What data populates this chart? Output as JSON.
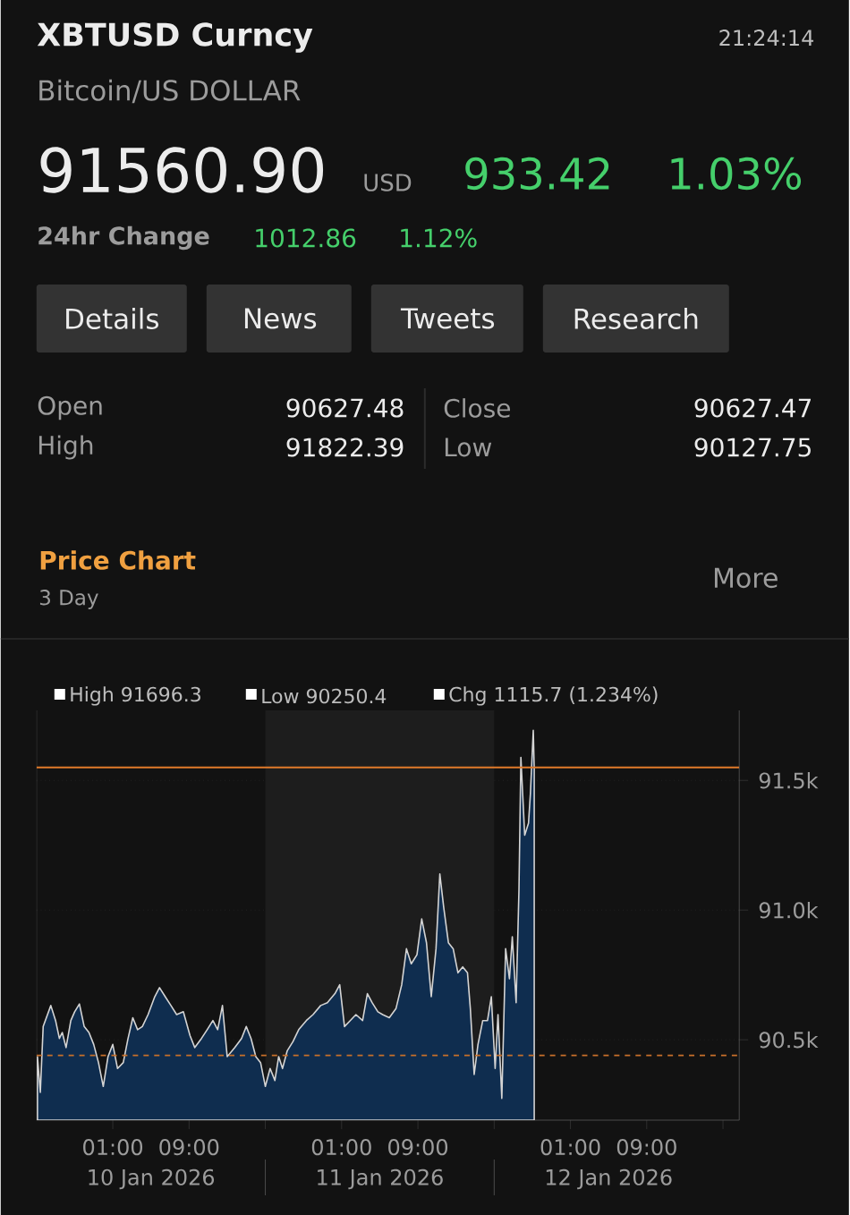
{
  "chart_data": {
    "type": "area",
    "title": "XBTUSD Curncy",
    "subtitle": "Bitcoin/US DOLLAR",
    "annotations": [
      "21:24:14",
      "91560.90",
      "USD",
      "933.42",
      "1.03%",
      "24hr Change",
      "1012.86",
      "1.12%",
      "Details",
      "News",
      "Tweets",
      "Research",
      "Open",
      "90627.48",
      "High",
      "91822.39",
      "Close",
      "90627.47",
      "Low",
      "90127.75",
      "Price Chart",
      "3 Day",
      "More",
      "High 91696.3",
      "Low 90250.4",
      "Chg 1115.7 (1.234%)",
      "10 Jan 2026",
      "11 Jan 2026",
      "12 Jan 2026"
    ],
    "x": [
      "2026-01-09T17:06",
      "2026-01-09T17:24",
      "2026-01-09T17:42",
      "2026-01-09T18:30",
      "2026-01-09T19:00",
      "2026-01-09T19:24",
      "2026-01-09T19:42",
      "2026-01-09T20:06",
      "2026-01-09T20:36",
      "2026-01-09T21:00",
      "2026-01-09T21:30",
      "2026-01-09T22:00",
      "2026-01-09T22:30",
      "2026-01-09T23:00",
      "2026-01-09T23:30",
      "2026-01-10T00:00",
      "2026-01-10T00:30",
      "2026-01-10T01:00",
      "2026-01-10T01:30",
      "2026-01-10T02:06",
      "2026-01-10T02:36",
      "2026-01-10T03:06",
      "2026-01-10T03:36",
      "2026-01-10T04:06",
      "2026-01-10T04:42",
      "2026-01-10T05:24",
      "2026-01-10T05:54",
      "2026-01-10T06:30",
      "2026-01-10T07:06",
      "2026-01-10T07:42",
      "2026-01-10T08:24",
      "2026-01-10T09:06",
      "2026-01-10T09:36",
      "2026-01-10T10:18",
      "2026-01-10T10:54",
      "2026-01-10T11:30",
      "2026-01-10T12:00",
      "2026-01-10T12:30",
      "2026-01-10T13:00",
      "2026-01-10T13:48",
      "2026-01-10T14:30",
      "2026-01-10T15:00",
      "2026-01-10T15:30",
      "2026-01-10T16:00",
      "2026-01-10T16:30",
      "2026-01-10T17:00",
      "2026-01-10T17:30",
      "2026-01-10T18:00",
      "2026-01-10T18:24",
      "2026-01-10T18:48",
      "2026-01-10T19:18",
      "2026-01-10T19:54",
      "2026-01-10T20:30",
      "2026-01-10T21:18",
      "2026-01-10T22:00",
      "2026-01-10T22:48",
      "2026-01-10T23:30",
      "2026-01-11T00:18",
      "2026-01-11T00:48",
      "2026-01-11T01:18",
      "2026-01-11T01:54",
      "2026-01-11T02:30",
      "2026-01-11T03:12",
      "2026-01-11T03:42",
      "2026-01-11T04:12",
      "2026-01-11T04:48",
      "2026-01-11T05:18",
      "2026-01-11T06:00",
      "2026-01-11T06:42",
      "2026-01-11T07:18",
      "2026-01-11T07:48",
      "2026-01-11T08:18",
      "2026-01-11T08:54",
      "2026-01-11T09:24",
      "2026-01-11T09:54",
      "2026-01-11T10:24",
      "2026-01-11T10:54",
      "2026-01-11T11:18",
      "2026-01-11T11:42",
      "2026-01-11T12:12",
      "2026-01-11T12:42",
      "2026-01-11T13:12",
      "2026-01-11T13:42",
      "2026-01-11T14:12",
      "2026-01-11T14:30",
      "2026-01-11T14:54",
      "2026-01-11T15:18",
      "2026-01-11T15:48",
      "2026-01-11T16:18",
      "2026-01-11T16:42",
      "2026-01-11T17:06",
      "2026-01-11T17:24",
      "2026-01-11T17:48",
      "2026-01-11T18:12",
      "2026-01-11T18:36",
      "2026-01-11T18:54",
      "2026-01-11T19:18",
      "2026-01-11T19:36",
      "2026-01-11T19:48",
      "2026-01-11T20:12",
      "2026-01-11T20:36",
      "2026-01-11T20:48",
      "2026-01-11T21:06",
      "2026-01-11T21:12"
    ],
    "series": [
      {
        "color": "#0f2d4f",
        "values": [
          90435,
          90297,
          90551,
          90632,
          90574,
          90505,
          90528,
          90470,
          90574,
          90608,
          90638,
          90551,
          90528,
          90482,
          90412,
          90320,
          90435,
          90482,
          90389,
          90412,
          90505,
          90585,
          90539,
          90551,
          90597,
          90666,
          90701,
          90666,
          90632,
          90597,
          90608,
          90516,
          90470,
          90505,
          90539,
          90574,
          90539,
          90632,
          90435,
          90470,
          90505,
          90551,
          90505,
          90435,
          90412,
          90320,
          90389,
          90343,
          90435,
          90389,
          90458,
          90493,
          90539,
          90574,
          90597,
          90632,
          90643,
          90678,
          90712,
          90551,
          90574,
          90597,
          90574,
          90678,
          90643,
          90608,
          90597,
          90585,
          90620,
          90712,
          90851,
          90793,
          90828,
          90966,
          90874,
          90666,
          90851,
          91139,
          91012,
          90874,
          90851,
          90758,
          90781,
          90758,
          90620,
          90366,
          90482,
          90574,
          90574,
          90666,
          90389,
          90597,
          90274,
          90851,
          90735,
          90897,
          90643,
          91081,
          91589,
          91289,
          91335,
          91450,
          91693,
          91543
        ]
      }
    ],
    "xlim": [
      "2026-01-09T17:00",
      "2026-01-12T18:42"
    ],
    "ylim": [
      90190,
      91770
    ],
    "xticks": [
      {
        "value": "2026-01-10T01:00",
        "label": "01:00"
      },
      {
        "value": "2026-01-10T09:00",
        "label": "09:00"
      },
      {
        "value": "2026-01-10T17:00",
        "label": null
      },
      {
        "value": "2026-01-11T01:00",
        "label": "01:00"
      },
      {
        "value": "2026-01-11T09:00",
        "label": "09:00"
      },
      {
        "value": "2026-01-11T17:00",
        "label": null
      },
      {
        "value": "2026-01-12T01:00",
        "label": "01:00"
      },
      {
        "value": "2026-01-12T09:00",
        "label": "09:00"
      },
      {
        "value": "2026-01-12T17:00",
        "label": null
      }
    ],
    "yticks": [
      {
        "value": 90500,
        "label": "90.5k"
      },
      {
        "value": 91000,
        "label": "91.0k"
      },
      {
        "value": 91500,
        "label": "91.5k"
      }
    ],
    "ref_lines": [
      {
        "axis": "y",
        "value": 91550,
        "color": "#e07a2a",
        "line_style": "solid"
      },
      {
        "axis": "y",
        "value": 90440,
        "color": "#c8702a",
        "line_style": "dashed"
      }
    ],
    "bands": [
      {
        "axis": "x",
        "from": "2026-01-10T17:00",
        "to": "2026-01-11T17:00",
        "color": "#1d1d1d"
      }
    ],
    "grid": "y",
    "marker": "none",
    "line_style": "solid"
  }
}
